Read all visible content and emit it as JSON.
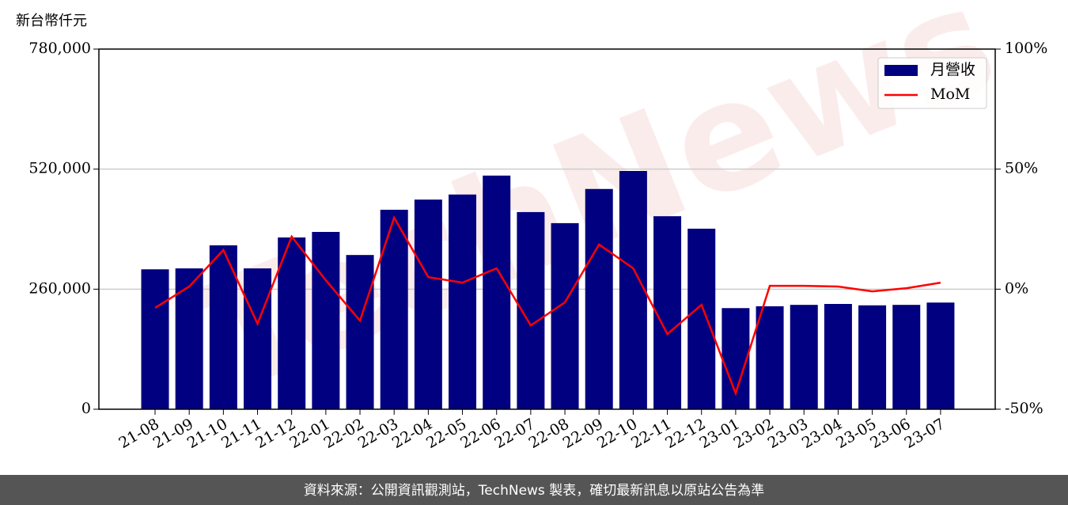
{
  "chart_data": {
    "type": "bar-line",
    "y_label": "新台幣仟元",
    "watermark": "TechNews",
    "footer": "資料來源：公開資訊觀測站，TechNews 製表，確切最新訊息以原站公告為準",
    "categories": [
      "21-08",
      "21-09",
      "21-10",
      "21-11",
      "21-12",
      "22-01",
      "22-02",
      "22-03",
      "22-04",
      "22-05",
      "22-06",
      "22-07",
      "22-08",
      "22-09",
      "22-10",
      "22-11",
      "22-12",
      "23-01",
      "23-02",
      "23-03",
      "23-04",
      "23-05",
      "23-06",
      "23-07"
    ],
    "series": [
      {
        "name": "月營收",
        "type": "bar",
        "color": "#000080",
        "values": [
          303000,
          305000,
          355000,
          305000,
          372000,
          384000,
          334000,
          432000,
          454000,
          465000,
          506000,
          427000,
          403000,
          477000,
          516000,
          418000,
          391000,
          219000,
          223000,
          226000,
          228000,
          225000,
          226000,
          231000
        ]
      },
      {
        "name": "MoM",
        "type": "line",
        "axis": "y2",
        "color": "#ff0000",
        "values": [
          -7.8,
          1.1,
          16.3,
          -14.4,
          21.9,
          3.7,
          -13.1,
          29.8,
          5.0,
          2.7,
          8.7,
          -15.1,
          -5.5,
          18.6,
          8.7,
          -18.7,
          -6.5,
          -43.4,
          1.4,
          1.4,
          1.1,
          -0.9,
          0.4,
          2.7
        ]
      }
    ],
    "ylim": [
      0,
      780000
    ],
    "yticks": [
      0,
      {
        "value": 260000,
        "label": "260,000"
      },
      {
        "value": 520000,
        "label": "520,000"
      },
      {
        "value": 780000,
        "label": "780,000"
      }
    ],
    "y2lim": [
      -50,
      100
    ],
    "y2ticks": [
      {
        "value": -50,
        "label": "-50%"
      },
      {
        "value": 0,
        "label": "0%"
      },
      {
        "value": 50,
        "label": "50%"
      },
      {
        "value": 100,
        "label": "100%"
      }
    ],
    "grid": true,
    "legend": "upper right"
  }
}
